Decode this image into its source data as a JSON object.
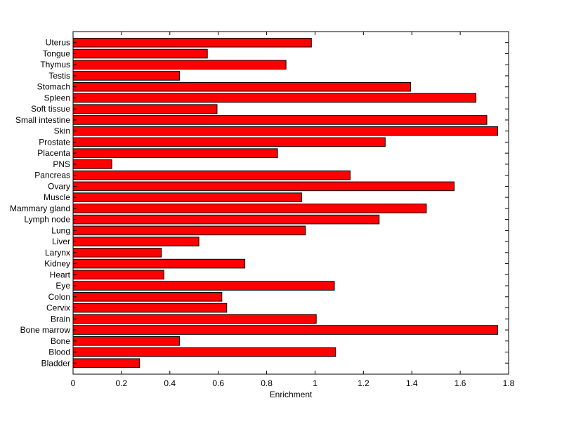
{
  "chart_data": {
    "type": "bar",
    "orientation": "horizontal",
    "title": "",
    "xlabel": "Enrichment",
    "ylabel": "",
    "xlim": [
      0,
      1.8
    ],
    "xticks": [
      0,
      0.2,
      0.4,
      0.6,
      0.8,
      1,
      1.2,
      1.4,
      1.6,
      1.8
    ],
    "xtick_labels": [
      "0",
      "0.2",
      "0.4",
      "0.6",
      "0.8",
      "1",
      "1.2",
      "1.4",
      "1.6",
      "1.8"
    ],
    "grid": false,
    "legend": "none",
    "bar_color": "#ff0000",
    "bar_edge_color": "#000000",
    "categories": [
      "Uterus",
      "Tongue",
      "Thymus",
      "Testis",
      "Stomach",
      "Spleen",
      "Soft tissue",
      "Small intestine",
      "Skin",
      "Prostate",
      "Placenta",
      "PNS",
      "Pancreas",
      "Ovary",
      "Muscle",
      "Mammary gland",
      "Lymph node",
      "Lung",
      "Liver",
      "Larynx",
      "Kidney",
      "Heart",
      "Eye",
      "Colon",
      "Cervix",
      "Brain",
      "Bone marrow",
      "Bone",
      "Blood",
      "Bladder"
    ],
    "values": [
      0.985,
      0.555,
      0.88,
      0.44,
      1.395,
      1.665,
      0.595,
      1.71,
      1.755,
      1.29,
      0.845,
      0.16,
      1.145,
      1.575,
      0.945,
      1.46,
      1.265,
      0.96,
      0.52,
      0.365,
      0.71,
      0.375,
      1.08,
      0.615,
      0.635,
      1.005,
      1.755,
      0.44,
      1.085,
      0.275
    ]
  }
}
